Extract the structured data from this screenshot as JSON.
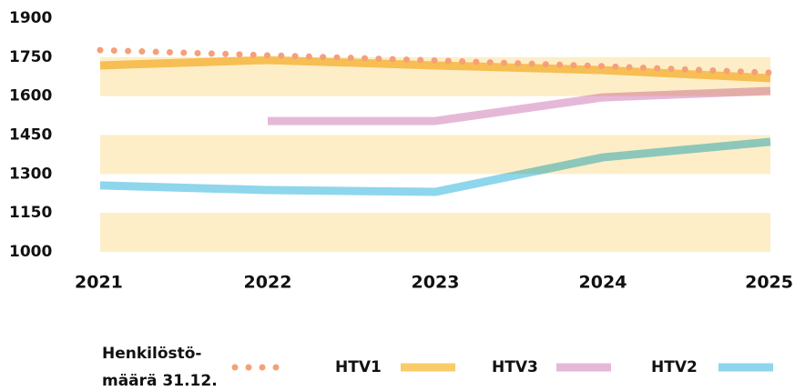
{
  "chart_data": {
    "type": "line",
    "categories": [
      "2021",
      "2022",
      "2023",
      "2024",
      "2025"
    ],
    "series": [
      {
        "name": "Henkilöstö-\nmäärä 31.12.",
        "color": "#f4a07a",
        "style": "dotted",
        "values": [
          1777,
          1757,
          1737,
          1715,
          1690
        ]
      },
      {
        "name": "HTV1",
        "color": "#f9cc6a",
        "style": "solid",
        "values": [
          1718,
          1739,
          1718,
          1700,
          1669
        ]
      },
      {
        "name": "HTV3",
        "color": "#e6b8d8",
        "style": "solid",
        "values": [
          null,
          1504,
          1504,
          1595,
          1620
        ]
      },
      {
        "name": "HTV2",
        "color": "#8ed6ec",
        "style": "solid",
        "values": [
          1256,
          1238,
          1231,
          1364,
          1424
        ]
      }
    ],
    "ylim": [
      1000,
      1900
    ],
    "yticks": [
      1000,
      1150,
      1300,
      1450,
      1600,
      1750,
      1900
    ],
    "band_color": "#fdeec8",
    "legend": "bottom"
  }
}
